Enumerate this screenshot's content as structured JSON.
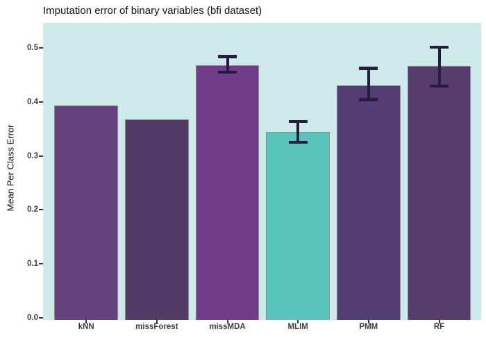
{
  "chart_data": {
    "type": "bar",
    "title": "Imputation error of binary variables (bfi dataset)",
    "xlabel": "",
    "ylabel": "Mean Per Class Error",
    "categories": [
      "kNN",
      "missForest",
      "missMDA",
      "MLIM",
      "PMM",
      "RF"
    ],
    "values": [
      0.393,
      0.368,
      0.468,
      0.344,
      0.431,
      0.466
    ],
    "error_bars": [
      null,
      null,
      {
        "low": 0.455,
        "high": 0.484
      },
      {
        "low": 0.325,
        "high": 0.364
      },
      {
        "low": 0.404,
        "high": 0.462
      },
      {
        "low": 0.429,
        "high": 0.501
      }
    ],
    "y_ticks": [
      0.0,
      0.1,
      0.2,
      0.3,
      0.4,
      0.5
    ],
    "y_tick_labels": [
      "0.0",
      "0.1",
      "0.2",
      "0.3",
      "0.4",
      "0.5"
    ],
    "ylim": [
      0,
      0.55
    ],
    "grid": false,
    "legend_position": "none",
    "colors": {
      "panel_background": "#cee9e9",
      "bar_fills": [
        "#65417e",
        "#533b68",
        "#723c8b",
        "#58c4bc",
        "#543d72",
        "#553c6b"
      ],
      "bar_border": "#8a8a8a",
      "errorbar": "#241d40",
      "axis_text": "#3d3d3d",
      "tick_mark": "#343434",
      "title_text": "#111111"
    }
  }
}
